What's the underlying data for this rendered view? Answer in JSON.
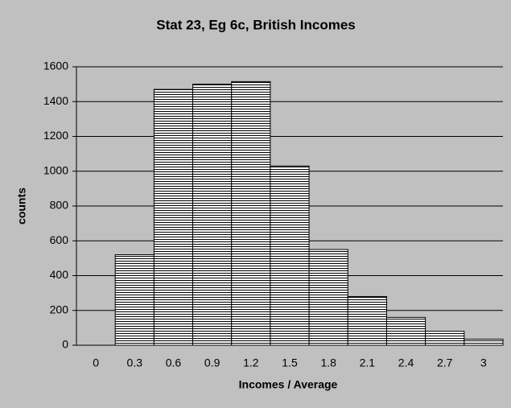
{
  "chart_data": {
    "type": "bar",
    "title": "Stat 23, Eg 6c, British Incomes",
    "x_label": "Incomes / Average",
    "y_label": "counts",
    "categories": [
      "0",
      "0.3",
      "0.6",
      "0.9",
      "1.2",
      "1.5",
      "1.8",
      "2.1",
      "2.4",
      "2.7",
      "3"
    ],
    "values": [
      0,
      520,
      1470,
      1500,
      1515,
      1030,
      550,
      280,
      160,
      80,
      35
    ],
    "color": "#000000",
    "ylim": [
      0,
      1600
    ],
    "yticks": [
      0,
      200,
      400,
      600,
      800,
      1000,
      1200,
      1400,
      1600
    ],
    "grid": true
  }
}
